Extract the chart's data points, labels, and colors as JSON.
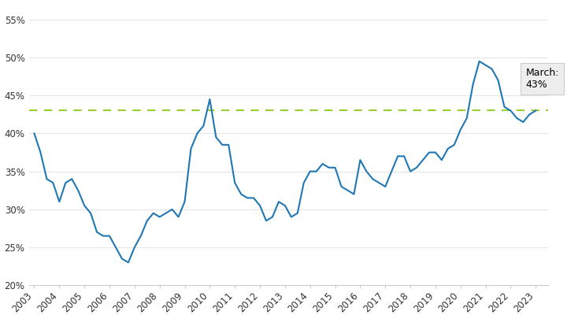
{
  "line_color": "#1F77B4",
  "dashed_line_color": "#9ACD32",
  "dashed_line_value": 43.0,
  "annotation_text": "March:\n43%",
  "annotation_box_facecolor": "#EEEEEE",
  "annotation_box_edgecolor": "#CCCCCC",
  "ylim": [
    20,
    57
  ],
  "yticks": [
    20,
    25,
    30,
    35,
    40,
    45,
    50,
    55
  ],
  "ytick_labels": [
    "20%",
    "25%",
    "30%",
    "35%",
    "40%",
    "45%",
    "50%",
    "55%"
  ],
  "x_years": [
    "2003",
    "2004",
    "2005",
    "2006",
    "2007",
    "2008",
    "2009",
    "2010",
    "2011",
    "2012",
    "2013",
    "2014",
    "2015",
    "2016",
    "2017",
    "2018",
    "2019",
    "2020",
    "2021",
    "2022",
    "2023"
  ],
  "data": [
    [
      2003.0,
      40.0
    ],
    [
      2003.25,
      37.5
    ],
    [
      2003.5,
      34.0
    ],
    [
      2003.75,
      33.5
    ],
    [
      2004.0,
      31.0
    ],
    [
      2004.25,
      33.5
    ],
    [
      2004.5,
      34.0
    ],
    [
      2004.75,
      32.5
    ],
    [
      2005.0,
      30.5
    ],
    [
      2005.25,
      29.5
    ],
    [
      2005.5,
      27.0
    ],
    [
      2005.75,
      26.5
    ],
    [
      2006.0,
      26.5
    ],
    [
      2006.25,
      25.0
    ],
    [
      2006.5,
      23.5
    ],
    [
      2006.75,
      23.0
    ],
    [
      2007.0,
      25.0
    ],
    [
      2007.25,
      26.5
    ],
    [
      2007.5,
      28.5
    ],
    [
      2007.75,
      29.5
    ],
    [
      2008.0,
      29.0
    ],
    [
      2008.25,
      29.5
    ],
    [
      2008.5,
      30.0
    ],
    [
      2008.75,
      29.0
    ],
    [
      2009.0,
      31.0
    ],
    [
      2009.25,
      38.0
    ],
    [
      2009.5,
      40.0
    ],
    [
      2009.75,
      41.0
    ],
    [
      2010.0,
      44.5
    ],
    [
      2010.25,
      39.5
    ],
    [
      2010.5,
      38.5
    ],
    [
      2010.75,
      38.5
    ],
    [
      2011.0,
      33.5
    ],
    [
      2011.25,
      32.0
    ],
    [
      2011.5,
      31.5
    ],
    [
      2011.75,
      31.5
    ],
    [
      2012.0,
      30.5
    ],
    [
      2012.25,
      28.5
    ],
    [
      2012.5,
      29.0
    ],
    [
      2012.75,
      31.0
    ],
    [
      2013.0,
      30.5
    ],
    [
      2013.25,
      29.0
    ],
    [
      2013.5,
      29.5
    ],
    [
      2013.75,
      33.5
    ],
    [
      2014.0,
      35.0
    ],
    [
      2014.25,
      35.0
    ],
    [
      2014.5,
      36.0
    ],
    [
      2014.75,
      35.5
    ],
    [
      2015.0,
      35.5
    ],
    [
      2015.25,
      33.0
    ],
    [
      2015.5,
      32.5
    ],
    [
      2015.75,
      32.0
    ],
    [
      2016.0,
      36.5
    ],
    [
      2016.25,
      35.0
    ],
    [
      2016.5,
      34.0
    ],
    [
      2016.75,
      33.5
    ],
    [
      2017.0,
      33.0
    ],
    [
      2017.25,
      35.0
    ],
    [
      2017.5,
      37.0
    ],
    [
      2017.75,
      37.0
    ],
    [
      2018.0,
      35.0
    ],
    [
      2018.25,
      35.5
    ],
    [
      2018.5,
      36.5
    ],
    [
      2018.75,
      37.5
    ],
    [
      2019.0,
      37.5
    ],
    [
      2019.25,
      36.5
    ],
    [
      2019.5,
      38.0
    ],
    [
      2019.75,
      38.5
    ],
    [
      2020.0,
      40.5
    ],
    [
      2020.25,
      42.0
    ],
    [
      2020.5,
      46.5
    ],
    [
      2020.75,
      49.5
    ],
    [
      2021.0,
      49.0
    ],
    [
      2021.25,
      48.5
    ],
    [
      2021.5,
      47.0
    ],
    [
      2021.75,
      43.5
    ],
    [
      2022.0,
      43.0
    ],
    [
      2022.25,
      42.0
    ],
    [
      2022.5,
      41.5
    ],
    [
      2022.75,
      42.5
    ],
    [
      2023.0,
      43.0
    ]
  ]
}
